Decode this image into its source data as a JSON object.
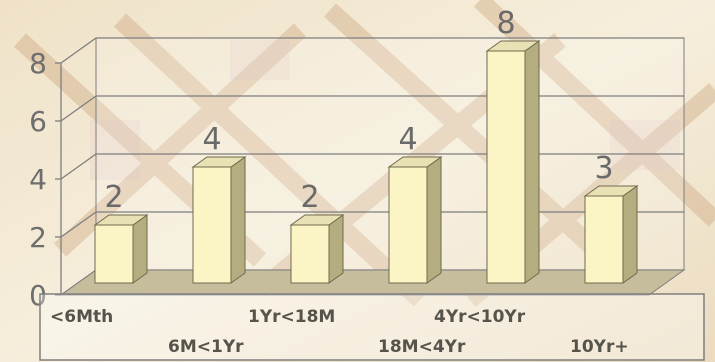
{
  "chart_data": {
    "type": "bar",
    "categories": [
      "<6Mth",
      "6M<1Yr",
      "1Yr<18M",
      "18M<4Yr",
      "4Yr<10Yr",
      "10Yr+"
    ],
    "values": [
      2,
      4,
      2,
      4,
      8,
      3
    ],
    "data_labels": [
      "2",
      "4",
      "2",
      "4",
      "8",
      "3"
    ],
    "ylim": [
      0,
      8
    ],
    "yticks": [
      "0",
      "2",
      "4",
      "6",
      "8"
    ],
    "grid": true,
    "bar_style": "3d",
    "colors": {
      "bar_front": "#fbf5c6",
      "bar_side": "#b3ad80",
      "bar_top": "#e7e1b3",
      "bar_edge": "#6f6a4c",
      "floor": "#c6bd9c",
      "gridline": "#7e7e7e",
      "background": "#f3e9d6",
      "axis_box": "#ffffff"
    }
  }
}
